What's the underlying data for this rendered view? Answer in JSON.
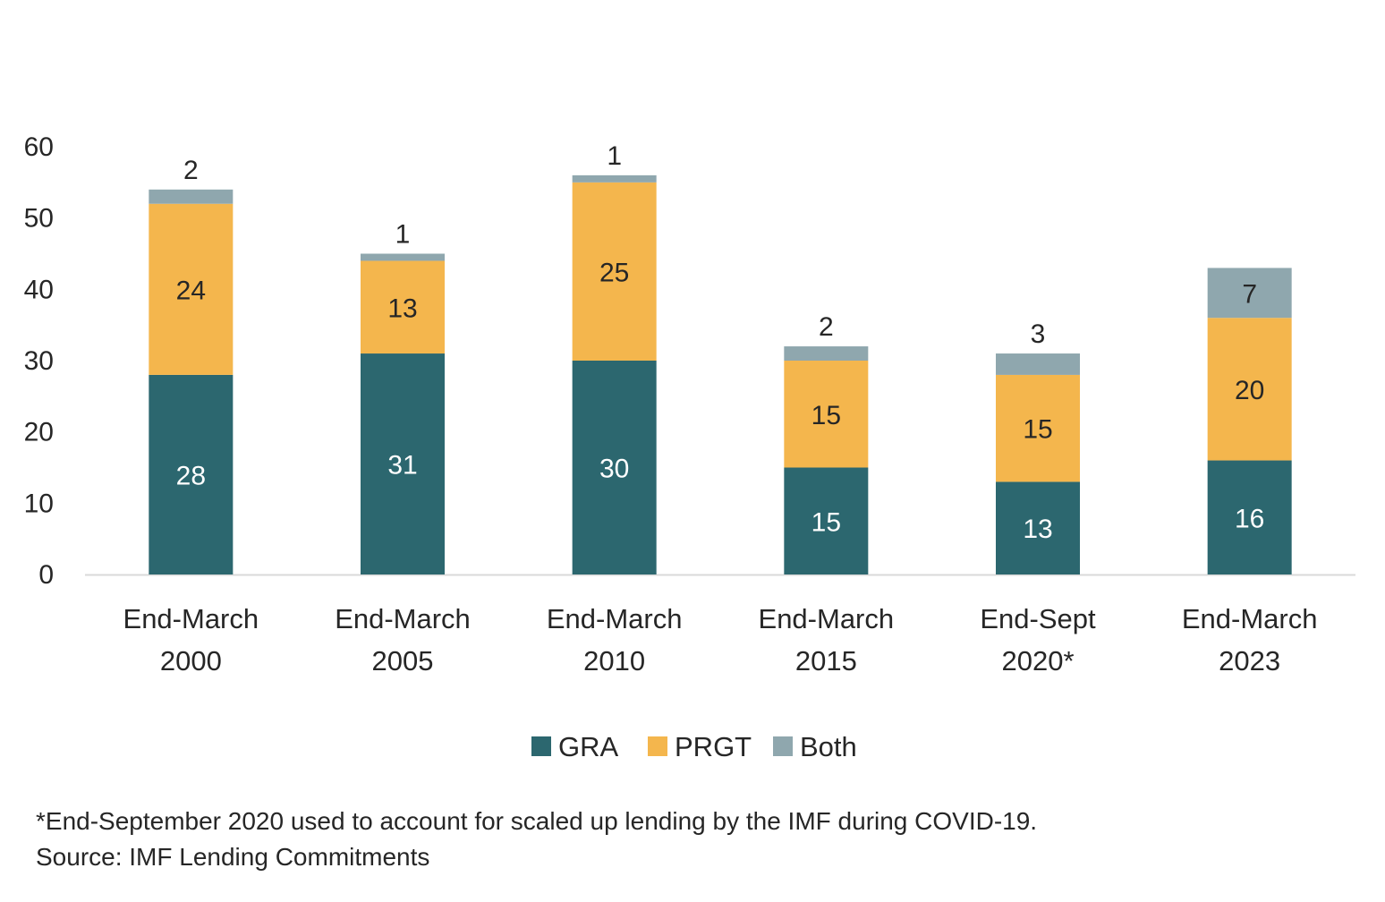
{
  "chart_data": {
    "type": "bar",
    "stacked": true,
    "categories": [
      [
        "End-March",
        "2000"
      ],
      [
        "End-March",
        "2005"
      ],
      [
        "End-March",
        "2010"
      ],
      [
        "End-March",
        "2015"
      ],
      [
        "End-Sept",
        "2020*"
      ],
      [
        "End-March",
        "2023"
      ]
    ],
    "series": [
      {
        "name": "GRA",
        "color": "#2c676f",
        "values": [
          28,
          31,
          30,
          15,
          13,
          16
        ]
      },
      {
        "name": "PRGT",
        "color": "#f4b64d",
        "values": [
          24,
          13,
          25,
          15,
          15,
          20
        ]
      },
      {
        "name": "Both",
        "color": "#8fa7ae",
        "values": [
          2,
          1,
          1,
          2,
          3,
          7
        ]
      }
    ],
    "ylim": [
      0,
      60
    ],
    "yticks": [
      0,
      10,
      20,
      30,
      40,
      50,
      60
    ],
    "grid": false,
    "legend_position": "bottom",
    "title": "",
    "xlabel": "",
    "ylabel": ""
  },
  "footnotes": {
    "note": "*End-September 2020 used to account for scaled up lending by the IMF during COVID-19.",
    "source": "Source: IMF Lending Commitments"
  }
}
